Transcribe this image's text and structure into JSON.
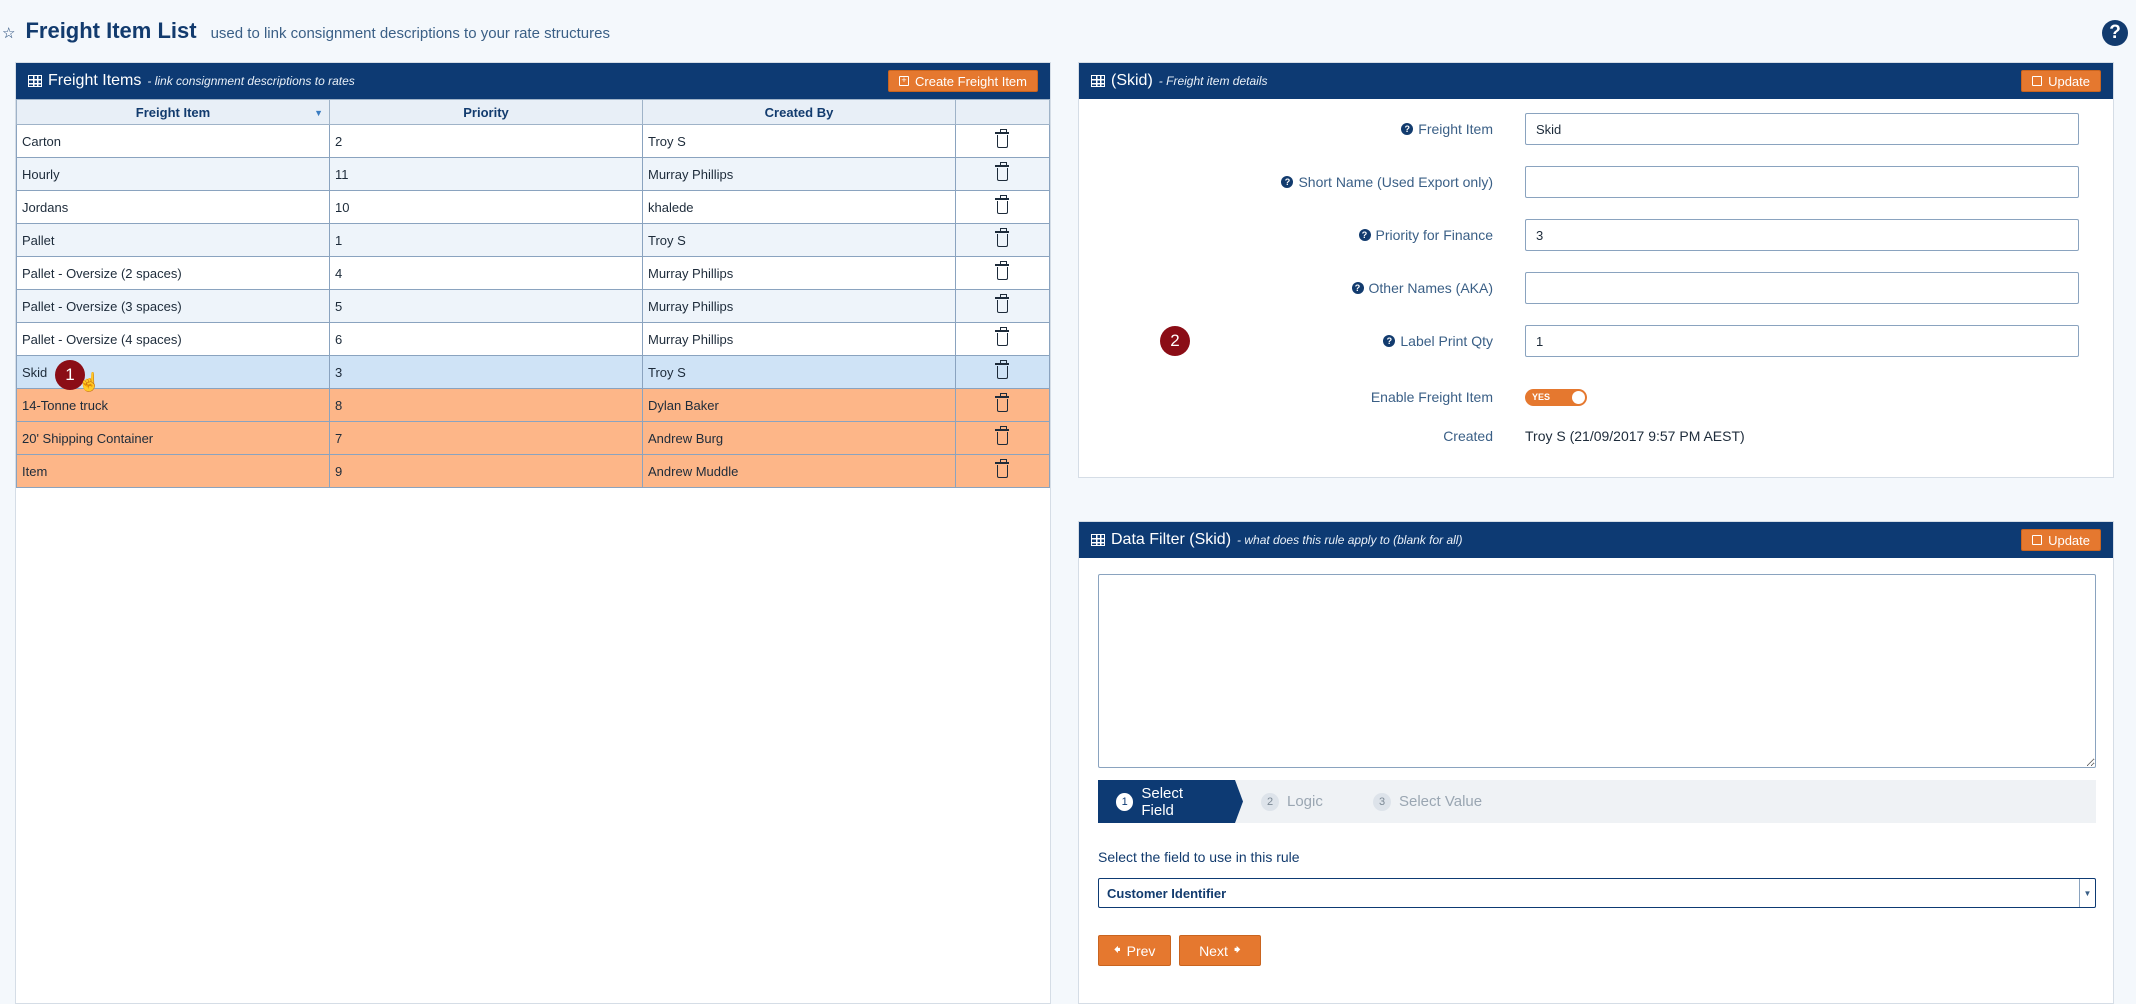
{
  "header": {
    "star": "☆",
    "title": "Freight Item List",
    "subtitle": "used to link consignment descriptions to your rate structures",
    "help_icon": "?"
  },
  "left_panel": {
    "title": "Freight Items",
    "subtitle": "- link consignment descriptions to rates",
    "create_button": "Create Freight Item",
    "columns": [
      "Freight Item",
      "Priority",
      "Created By",
      ""
    ],
    "rows": [
      {
        "item": "Carton",
        "priority": "2",
        "created_by": "Troy S",
        "state": "normal"
      },
      {
        "item": "Hourly",
        "priority": "11",
        "created_by": "Murray Phillips",
        "state": "alt"
      },
      {
        "item": "Jordans",
        "priority": "10",
        "created_by": "khalede",
        "state": "normal"
      },
      {
        "item": "Pallet",
        "priority": "1",
        "created_by": "Troy S",
        "state": "alt"
      },
      {
        "item": "Pallet - Oversize (2 spaces)",
        "priority": "4",
        "created_by": "Murray Phillips",
        "state": "normal"
      },
      {
        "item": "Pallet - Oversize (3 spaces)",
        "priority": "5",
        "created_by": "Murray Phillips",
        "state": "alt"
      },
      {
        "item": "Pallet - Oversize (4 spaces)",
        "priority": "6",
        "created_by": "Murray Phillips",
        "state": "normal"
      },
      {
        "item": "Skid",
        "priority": "3",
        "created_by": "Troy S",
        "state": "selected"
      },
      {
        "item": "14-Tonne truck",
        "priority": "8",
        "created_by": "Dylan Baker",
        "state": "inactive"
      },
      {
        "item": "20' Shipping Container",
        "priority": "7",
        "created_by": "Andrew Burg",
        "state": "inactive"
      },
      {
        "item": "Item",
        "priority": "9",
        "created_by": "Andrew Muddle",
        "state": "inactive"
      }
    ],
    "marker": "1"
  },
  "details_panel": {
    "title": "(Skid)",
    "subtitle": "- Freight item details",
    "update_button": "Update",
    "marker": "2",
    "fields": {
      "freight_item": {
        "label": "Freight Item",
        "value": "Skid"
      },
      "short_name": {
        "label": "Short Name (Used Export only)",
        "value": ""
      },
      "priority": {
        "label": "Priority for Finance",
        "value": "3"
      },
      "other_names": {
        "label": "Other Names (AKA)",
        "value": ""
      },
      "label_qty": {
        "label": "Label Print Qty",
        "value": "1"
      },
      "enable": {
        "label": "Enable Freight Item",
        "value": "YES"
      },
      "created": {
        "label": "Created",
        "value": "Troy S (21/09/2017 9:57 PM AEST)"
      }
    }
  },
  "filter_panel": {
    "title": "Data Filter (Skid)",
    "subtitle": "- what does this rule apply to (blank for all)",
    "update_button": "Update",
    "filter_text": "",
    "steps": [
      {
        "num": "1",
        "label": "Select Field"
      },
      {
        "num": "2",
        "label": "Logic"
      },
      {
        "num": "3",
        "label": "Select Value"
      }
    ],
    "prompt": "Select the field to use in this rule",
    "selected_field": "Customer Identifier",
    "prev_button": "Prev",
    "next_button": "Next"
  },
  "colors": {
    "header_blue": "#0d3a73",
    "accent_orange": "#e5782f",
    "inactive_row": "#fdb688",
    "selected_row": "#cfe3f6",
    "marker_red": "#8b0d16"
  }
}
